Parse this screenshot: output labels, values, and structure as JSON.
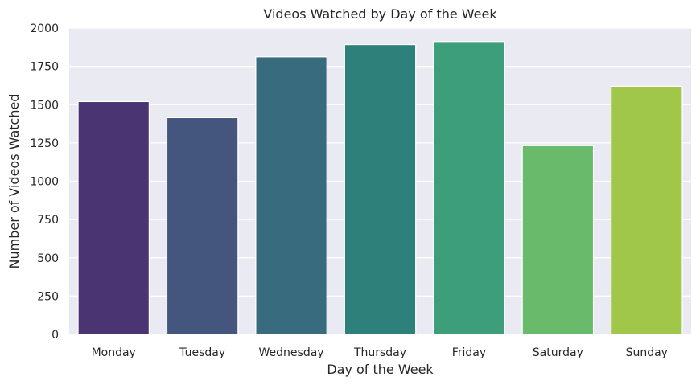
{
  "chart_data": {
    "type": "bar",
    "title": "Videos Watched by Day of the Week",
    "xlabel": "Day of the Week",
    "ylabel": "Number of Videos Watched",
    "categories": [
      "Monday",
      "Tuesday",
      "Wednesday",
      "Thursday",
      "Friday",
      "Saturday",
      "Sunday"
    ],
    "values": [
      1520,
      1415,
      1812,
      1892,
      1912,
      1232,
      1620
    ],
    "colors": [
      "#4a3472",
      "#44567e",
      "#386b7e",
      "#2e817b",
      "#3c9e7a",
      "#6aba6b",
      "#a1c74a"
    ],
    "ylim": [
      0,
      2000
    ],
    "yticks": [
      0,
      250,
      500,
      750,
      1000,
      1250,
      1500,
      1750,
      2000
    ],
    "grid": true,
    "background": "#eaeaf2"
  }
}
